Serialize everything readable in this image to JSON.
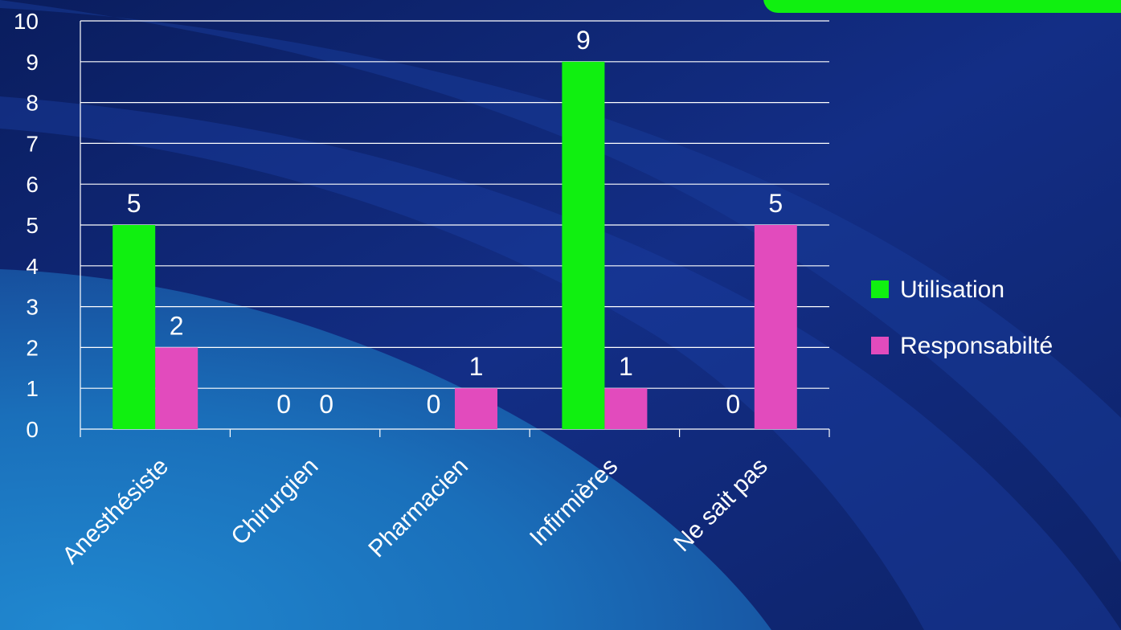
{
  "colors": {
    "background_dark": "#0b1f63",
    "background_mid": "#173a9a",
    "accent_lightblue": "#1a78c8",
    "series_utilisation": "#10f010",
    "series_responsabilite": "#e24bbd",
    "axis": "#ffffff"
  },
  "chart_data": {
    "type": "bar",
    "categories": [
      "Anesthésiste",
      "Chirurgien",
      "Pharmacien",
      "Infirmières",
      "Ne sait pas"
    ],
    "series": [
      {
        "name": "Utilisation",
        "values": [
          5,
          0,
          0,
          9,
          0
        ]
      },
      {
        "name": "Responsabilté",
        "values": [
          2,
          0,
          1,
          1,
          5
        ]
      }
    ],
    "ylim": [
      0,
      10
    ],
    "y_ticks": [
      "0",
      "1",
      "2",
      "3",
      "4",
      "5",
      "6",
      "7",
      "8",
      "9",
      "10"
    ],
    "grid": true,
    "legend_position": "right",
    "data_labels": true
  }
}
